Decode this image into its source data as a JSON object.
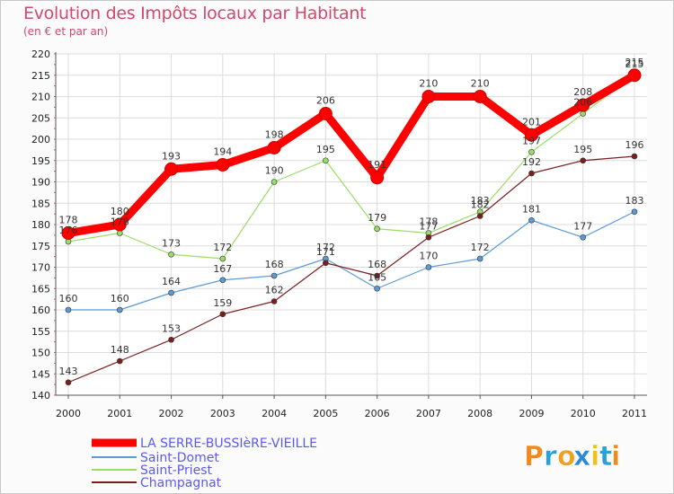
{
  "header": {
    "title": "Evolution des Impôts locaux par Habitant",
    "subtitle": "(en € et par an)"
  },
  "logo": {
    "text": "Proxiti",
    "letters": [
      "P",
      "r",
      "o",
      "x",
      "i",
      "t",
      "i"
    ]
  },
  "chart_data": {
    "type": "line",
    "title": "Evolution des Impôts locaux par Habitant",
    "subtitle": "(en € et par an)",
    "xlabel": "",
    "ylabel": "",
    "x": [
      "2000",
      "2001",
      "2002",
      "2003",
      "2004",
      "2005",
      "2006",
      "2007",
      "2008",
      "2009",
      "2010",
      "2011"
    ],
    "ylim": [
      140,
      220
    ],
    "yticks": [
      140,
      145,
      150,
      155,
      160,
      165,
      170,
      175,
      180,
      185,
      190,
      195,
      200,
      205,
      210,
      215,
      220
    ],
    "grid": true,
    "legend": "bottom-left",
    "series": [
      {
        "name": "LA SERRE-BUSSIèRE-VIEILLE",
        "color": "#ff0000",
        "values": [
          178,
          180,
          193,
          194,
          198,
          206,
          191,
          210,
          210,
          201,
          208,
          215
        ]
      },
      {
        "name": "Saint-Domet",
        "color": "#5b9bd5",
        "values": [
          160,
          160,
          164,
          167,
          168,
          172,
          165,
          170,
          172,
          181,
          177,
          183
        ]
      },
      {
        "name": "Saint-Priest",
        "color": "#99dd66",
        "values": [
          176,
          178,
          173,
          172,
          190,
          195,
          179,
          178,
          183,
          197,
          206,
          215
        ]
      },
      {
        "name": "Champagnat",
        "color": "#7a1f1f",
        "values": [
          143,
          148,
          153,
          159,
          162,
          171,
          168,
          177,
          182,
          192,
          195,
          196
        ]
      }
    ]
  }
}
